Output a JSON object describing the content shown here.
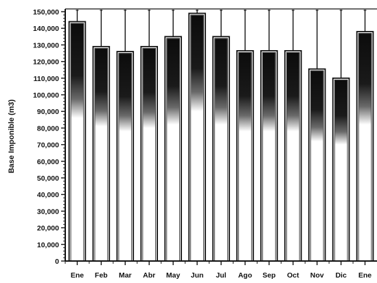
{
  "chart_data": {
    "type": "bar",
    "ylabel": "Base Imponible (m3)",
    "xlabel": "",
    "categories": [
      "Ene",
      "Feb",
      "Mar",
      "Abr",
      "May",
      "Jun",
      "Jul",
      "Ago",
      "Sep",
      "Oct",
      "Nov",
      "Dic",
      "Ene"
    ],
    "values": [
      144000,
      129000,
      126000,
      129000,
      135000,
      149000,
      135000,
      126500,
      126500,
      126500,
      115500,
      110000,
      138000
    ],
    "shade_lower": [
      86000,
      81000,
      78000,
      80000,
      82000,
      90000,
      82000,
      78000,
      78000,
      78000,
      72000,
      70000,
      82000
    ],
    "ylim": [
      0,
      150000
    ],
    "yticks": [
      "0",
      "10,000",
      "20,000",
      "30,000",
      "40,000",
      "50,000",
      "60,000",
      "70,000",
      "80,000",
      "90,000",
      "100,000",
      "110,000",
      "120,000",
      "130,000",
      "140,000",
      "150,000"
    ],
    "grid": false,
    "colors": {
      "bar_fill": "#111111",
      "bar_bg": "#ffffff",
      "outline": "#111111"
    }
  }
}
